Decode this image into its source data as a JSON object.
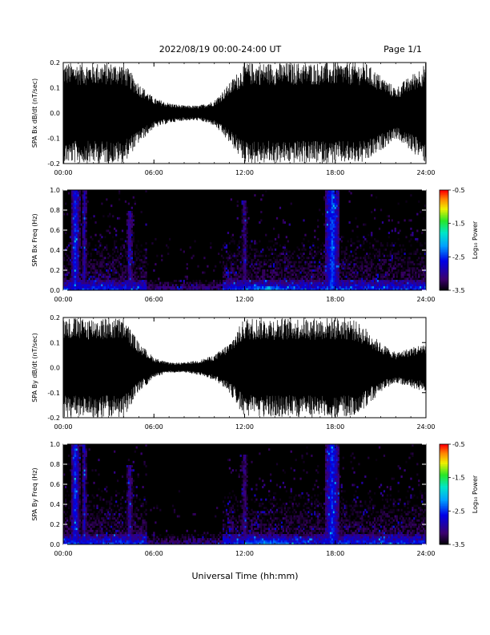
{
  "header": {
    "title": "2022/08/19  00:00-24:00 UT",
    "page": "Page 1/1"
  },
  "xlabel": "Universal Time (hh:mm)",
  "chart_data": [
    {
      "type": "line",
      "ylabel": "SPA Bx dB/dt (nT/sec)",
      "xlim": [
        0,
        24
      ],
      "ylim": [
        -0.2,
        0.2
      ],
      "xticks": [
        "00:00",
        "06:00",
        "12:00",
        "18:00",
        "24:00"
      ],
      "yticks": [
        "0.2",
        "0.1",
        "0.0",
        "-0.1",
        "-0.2"
      ],
      "yticks_values": [
        0.2,
        0.1,
        0.0,
        -0.1,
        -0.2
      ],
      "envelope": {
        "hours": [
          0,
          1,
          2,
          3,
          4,
          5,
          6,
          7,
          8,
          9,
          10,
          11,
          12,
          13,
          14,
          15,
          16,
          17,
          18,
          19,
          20,
          21,
          22,
          23,
          24
        ],
        "upper": [
          0.2,
          0.2,
          0.2,
          0.2,
          0.2,
          0.12,
          0.06,
          0.04,
          0.03,
          0.03,
          0.05,
          0.12,
          0.2,
          0.2,
          0.2,
          0.2,
          0.2,
          0.2,
          0.2,
          0.2,
          0.2,
          0.15,
          0.1,
          0.15,
          0.2
        ],
        "lower": [
          -0.2,
          -0.2,
          -0.2,
          -0.2,
          -0.2,
          -0.12,
          -0.06,
          -0.04,
          -0.03,
          -0.03,
          -0.05,
          -0.12,
          -0.2,
          -0.2,
          -0.2,
          -0.2,
          -0.2,
          -0.2,
          -0.2,
          -0.2,
          -0.2,
          -0.15,
          -0.1,
          -0.15,
          -0.2
        ]
      }
    },
    {
      "type": "heatmap",
      "ylabel": "SPA Bx Freq (Hz)",
      "colorbar_label": "Log₁₀ Power",
      "colorbar_ticks": [
        "-0.5",
        "-1.5",
        "-2.5",
        "-3.5"
      ],
      "colorbar_range": [
        -3.5,
        -0.5
      ],
      "xlim": [
        0,
        24
      ],
      "ylim": [
        0,
        1.0
      ],
      "xticks": [
        "00:00",
        "06:00",
        "12:00",
        "18:00",
        "24:00"
      ],
      "yticks": [
        "1.0",
        "0.8",
        "0.6",
        "0.4",
        "0.2",
        "0.0"
      ],
      "yticks_values": [
        1.0,
        0.8,
        0.6,
        0.4,
        0.2,
        0.0
      ],
      "hot_spots": [
        {
          "hour": 0.8,
          "width": 0.3,
          "fmax": 1.0,
          "level": -2.3
        },
        {
          "hour": 1.4,
          "width": 0.2,
          "fmax": 1.0,
          "level": -2.6
        },
        {
          "hour": 4.4,
          "width": 0.3,
          "fmax": 0.8,
          "level": -2.7
        },
        {
          "hour": 12.0,
          "width": 0.3,
          "fmax": 0.9,
          "level": -2.8
        },
        {
          "hour": 17.8,
          "width": 0.5,
          "fmax": 1.0,
          "level": -2.2
        },
        {
          "hour": 13.5,
          "width": 3.0,
          "fmax": 0.05,
          "level": -1.8
        }
      ]
    },
    {
      "type": "line",
      "ylabel": "SPA By dB/dt (nT/sec)",
      "xlim": [
        0,
        24
      ],
      "ylim": [
        -0.2,
        0.2
      ],
      "xticks": [
        "00:00",
        "06:00",
        "12:00",
        "18:00",
        "24:00"
      ],
      "yticks": [
        "0.2",
        "0.1",
        "0.0",
        "-0.1",
        "-0.2"
      ],
      "yticks_values": [
        0.2,
        0.1,
        0.0,
        -0.1,
        -0.2
      ],
      "envelope": {
        "hours": [
          0,
          1,
          2,
          3,
          4,
          5,
          6,
          7,
          8,
          9,
          10,
          11,
          12,
          13,
          14,
          15,
          16,
          17,
          18,
          19,
          20,
          21,
          22,
          23,
          24
        ],
        "upper": [
          0.2,
          0.2,
          0.2,
          0.2,
          0.2,
          0.1,
          0.04,
          0.02,
          0.02,
          0.03,
          0.05,
          0.1,
          0.2,
          0.2,
          0.2,
          0.2,
          0.2,
          0.2,
          0.2,
          0.2,
          0.16,
          0.1,
          0.06,
          0.08,
          0.1
        ],
        "lower": [
          -0.2,
          -0.2,
          -0.2,
          -0.2,
          -0.2,
          -0.1,
          -0.04,
          -0.02,
          -0.02,
          -0.03,
          -0.05,
          -0.1,
          -0.2,
          -0.2,
          -0.2,
          -0.2,
          -0.2,
          -0.2,
          -0.2,
          -0.2,
          -0.16,
          -0.1,
          -0.06,
          -0.08,
          -0.1
        ]
      }
    },
    {
      "type": "heatmap",
      "ylabel": "SPA By Freq (Hz)",
      "colorbar_label": "Log₁₀ Power",
      "colorbar_ticks": [
        "-0.5",
        "-1.5",
        "-2.5",
        "-3.5"
      ],
      "colorbar_range": [
        -3.5,
        -0.5
      ],
      "xlim": [
        0,
        24
      ],
      "ylim": [
        0,
        1.0
      ],
      "xticks": [
        "00:00",
        "06:00",
        "12:00",
        "18:00",
        "24:00"
      ],
      "yticks": [
        "1.0",
        "0.8",
        "0.6",
        "0.4",
        "0.2",
        "0.0"
      ],
      "yticks_values": [
        1.0,
        0.8,
        0.6,
        0.4,
        0.2,
        0.0
      ],
      "hot_spots": [
        {
          "hour": 0.8,
          "width": 0.3,
          "fmax": 1.0,
          "level": -2.3
        },
        {
          "hour": 1.4,
          "width": 0.2,
          "fmax": 1.0,
          "level": -2.6
        },
        {
          "hour": 4.4,
          "width": 0.3,
          "fmax": 0.8,
          "level": -2.7
        },
        {
          "hour": 12.0,
          "width": 0.3,
          "fmax": 0.9,
          "level": -2.8
        },
        {
          "hour": 17.8,
          "width": 0.5,
          "fmax": 1.0,
          "level": -2.3
        },
        {
          "hour": 13.5,
          "width": 3.0,
          "fmax": 0.05,
          "level": -1.8
        }
      ]
    }
  ]
}
